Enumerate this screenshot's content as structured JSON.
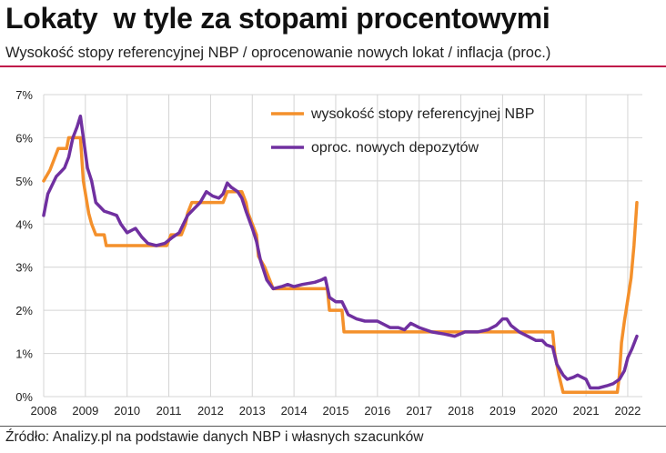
{
  "title": "Lokaty  w tyle za stopami procentowymi",
  "subtitle": "Wysokość stopy referencyjnej NBP / oprocenowanie nowych lokat / inflacja (proc.)",
  "source": "Źródło: Analizy.pl na podstawie danych NBP i własnych szacunków",
  "chart_data": {
    "type": "line",
    "title": "Lokaty  w tyle za stopami procentowymi",
    "subtitle": "Wysokość stopy referencyjnej NBP / oprocenowanie nowych lokat / inflacja (proc.)",
    "xlabel": "",
    "ylabel": "",
    "xlim": [
      2008.0,
      2022.35
    ],
    "ylim": [
      0,
      7
    ],
    "x_ticks": [
      "2008",
      "2009",
      "2010",
      "2011",
      "2012",
      "2013",
      "2014",
      "2015",
      "2016",
      "2017",
      "2018",
      "2019",
      "2020",
      "2021",
      "2022"
    ],
    "y_ticks": [
      "0%",
      "1%",
      "2%",
      "3%",
      "4%",
      "5%",
      "6%",
      "7%"
    ],
    "grid": true,
    "legend_position": "top-right",
    "series": [
      {
        "name": "wysokość stopy referencyjnej NBP",
        "color": "#f4902b",
        "points": [
          [
            2008.0,
            5.0
          ],
          [
            2008.15,
            5.25
          ],
          [
            2008.25,
            5.5
          ],
          [
            2008.35,
            5.75
          ],
          [
            2008.55,
            5.75
          ],
          [
            2008.6,
            6.0
          ],
          [
            2008.88,
            6.0
          ],
          [
            2008.95,
            5.0
          ],
          [
            2009.08,
            4.25
          ],
          [
            2009.15,
            4.0
          ],
          [
            2009.25,
            3.75
          ],
          [
            2009.45,
            3.75
          ],
          [
            2009.5,
            3.5
          ],
          [
            2010.95,
            3.5
          ],
          [
            2011.05,
            3.75
          ],
          [
            2011.3,
            3.75
          ],
          [
            2011.4,
            4.0
          ],
          [
            2011.45,
            4.25
          ],
          [
            2011.55,
            4.5
          ],
          [
            2012.3,
            4.5
          ],
          [
            2012.4,
            4.75
          ],
          [
            2012.75,
            4.75
          ],
          [
            2012.85,
            4.5
          ],
          [
            2012.9,
            4.25
          ],
          [
            2013.0,
            4.0
          ],
          [
            2013.1,
            3.75
          ],
          [
            2013.15,
            3.25
          ],
          [
            2013.3,
            3.0
          ],
          [
            2013.4,
            2.75
          ],
          [
            2013.5,
            2.5
          ],
          [
            2014.8,
            2.5
          ],
          [
            2014.85,
            2.0
          ],
          [
            2015.15,
            2.0
          ],
          [
            2015.2,
            1.5
          ],
          [
            2020.2,
            1.5
          ],
          [
            2020.25,
            1.0
          ],
          [
            2020.35,
            0.5
          ],
          [
            2020.45,
            0.1
          ],
          [
            2021.75,
            0.1
          ],
          [
            2021.8,
            0.5
          ],
          [
            2021.85,
            1.25
          ],
          [
            2021.92,
            1.75
          ],
          [
            2022.0,
            2.25
          ],
          [
            2022.08,
            2.75
          ],
          [
            2022.15,
            3.5
          ],
          [
            2022.22,
            4.5
          ]
        ]
      },
      {
        "name": "oproc. nowych depozytów",
        "color": "#7030a0",
        "points": [
          [
            2008.0,
            4.2
          ],
          [
            2008.1,
            4.7
          ],
          [
            2008.2,
            4.9
          ],
          [
            2008.3,
            5.1
          ],
          [
            2008.4,
            5.2
          ],
          [
            2008.5,
            5.3
          ],
          [
            2008.6,
            5.55
          ],
          [
            2008.7,
            6.0
          ],
          [
            2008.8,
            6.25
          ],
          [
            2008.88,
            6.5
          ],
          [
            2008.95,
            6.0
          ],
          [
            2009.05,
            5.3
          ],
          [
            2009.15,
            5.0
          ],
          [
            2009.25,
            4.5
          ],
          [
            2009.45,
            4.3
          ],
          [
            2009.6,
            4.25
          ],
          [
            2009.75,
            4.2
          ],
          [
            2009.85,
            4.0
          ],
          [
            2010.0,
            3.8
          ],
          [
            2010.2,
            3.9
          ],
          [
            2010.35,
            3.7
          ],
          [
            2010.5,
            3.55
          ],
          [
            2010.7,
            3.5
          ],
          [
            2010.9,
            3.55
          ],
          [
            2011.1,
            3.7
          ],
          [
            2011.25,
            3.8
          ],
          [
            2011.35,
            4.0
          ],
          [
            2011.45,
            4.2
          ],
          [
            2011.6,
            4.35
          ],
          [
            2011.75,
            4.5
          ],
          [
            2011.9,
            4.75
          ],
          [
            2012.05,
            4.65
          ],
          [
            2012.2,
            4.6
          ],
          [
            2012.3,
            4.7
          ],
          [
            2012.4,
            4.95
          ],
          [
            2012.5,
            4.85
          ],
          [
            2012.65,
            4.75
          ],
          [
            2012.75,
            4.6
          ],
          [
            2012.85,
            4.3
          ],
          [
            2013.0,
            3.9
          ],
          [
            2013.1,
            3.6
          ],
          [
            2013.2,
            3.15
          ],
          [
            2013.35,
            2.7
          ],
          [
            2013.5,
            2.5
          ],
          [
            2013.7,
            2.55
          ],
          [
            2013.85,
            2.6
          ],
          [
            2014.0,
            2.55
          ],
          [
            2014.2,
            2.6
          ],
          [
            2014.5,
            2.65
          ],
          [
            2014.65,
            2.7
          ],
          [
            2014.75,
            2.75
          ],
          [
            2014.85,
            2.3
          ],
          [
            2015.0,
            2.2
          ],
          [
            2015.15,
            2.2
          ],
          [
            2015.3,
            1.9
          ],
          [
            2015.5,
            1.8
          ],
          [
            2015.7,
            1.75
          ],
          [
            2016.0,
            1.75
          ],
          [
            2016.3,
            1.6
          ],
          [
            2016.5,
            1.6
          ],
          [
            2016.65,
            1.55
          ],
          [
            2016.8,
            1.7
          ],
          [
            2017.0,
            1.6
          ],
          [
            2017.3,
            1.5
          ],
          [
            2017.6,
            1.45
          ],
          [
            2017.85,
            1.4
          ],
          [
            2018.1,
            1.5
          ],
          [
            2018.4,
            1.5
          ],
          [
            2018.65,
            1.55
          ],
          [
            2018.85,
            1.65
          ],
          [
            2019.0,
            1.8
          ],
          [
            2019.1,
            1.8
          ],
          [
            2019.2,
            1.65
          ],
          [
            2019.4,
            1.5
          ],
          [
            2019.6,
            1.4
          ],
          [
            2019.8,
            1.3
          ],
          [
            2019.95,
            1.3
          ],
          [
            2020.05,
            1.2
          ],
          [
            2020.2,
            1.15
          ],
          [
            2020.3,
            0.75
          ],
          [
            2020.45,
            0.5
          ],
          [
            2020.55,
            0.4
          ],
          [
            2020.7,
            0.45
          ],
          [
            2020.8,
            0.5
          ],
          [
            2020.9,
            0.45
          ],
          [
            2021.0,
            0.4
          ],
          [
            2021.1,
            0.2
          ],
          [
            2021.3,
            0.2
          ],
          [
            2021.5,
            0.25
          ],
          [
            2021.65,
            0.3
          ],
          [
            2021.8,
            0.4
          ],
          [
            2021.92,
            0.6
          ],
          [
            2022.0,
            0.9
          ],
          [
            2022.1,
            1.1
          ],
          [
            2022.22,
            1.4
          ]
        ]
      }
    ]
  }
}
